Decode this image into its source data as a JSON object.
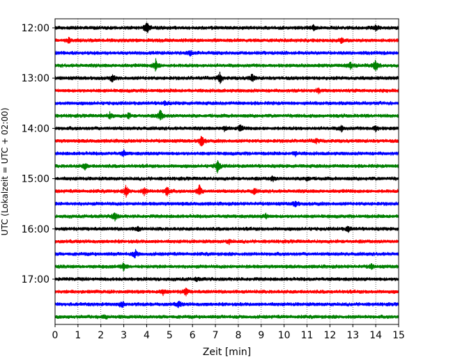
{
  "chart_data": {
    "type": "line",
    "title": "",
    "xlabel": "Zeit  [min]",
    "ylabel": "UTC (Lokalzeit = UTC + 02:00)",
    "xlim": [
      0,
      15
    ],
    "x_ticks": [
      0,
      1,
      2,
      3,
      4,
      5,
      6,
      7,
      8,
      9,
      10,
      11,
      12,
      13,
      14,
      15
    ],
    "x_tick_labels": [
      "0",
      "1",
      "2",
      "3",
      "4",
      "5",
      "6",
      "7",
      "8",
      "9",
      "10",
      "11",
      "12",
      "13",
      "14",
      "15"
    ],
    "y_tick_labels": [
      "12:00",
      "13:00",
      "14:00",
      "15:00",
      "16:00",
      "17:00"
    ],
    "y_axis_inverted": true,
    "grid": "vertical dotted at each minute",
    "trace_interval_minutes": 15,
    "trace_colors": [
      "#000000",
      "#ff0000",
      "#0000ff",
      "#008000"
    ],
    "traces": [
      {
        "start": "12:00",
        "color": "#000000",
        "events": [
          {
            "t": 4.0,
            "amp": 1.0
          },
          {
            "t": 11.3,
            "amp": 0.45
          },
          {
            "t": 14.0,
            "amp": 0.35
          }
        ]
      },
      {
        "start": "12:15",
        "color": "#ff0000",
        "events": [
          {
            "t": 0.6,
            "amp": 0.3
          },
          {
            "t": 12.5,
            "amp": 0.35
          }
        ]
      },
      {
        "start": "12:30",
        "color": "#0000ff",
        "events": [
          {
            "t": 5.9,
            "amp": 0.3
          }
        ]
      },
      {
        "start": "12:45",
        "color": "#008000",
        "events": [
          {
            "t": 4.4,
            "amp": 0.9
          },
          {
            "t": 12.9,
            "amp": 0.45
          },
          {
            "t": 14.0,
            "amp": 0.95
          }
        ]
      },
      {
        "start": "13:00",
        "color": "#000000",
        "events": [
          {
            "t": 2.5,
            "amp": 0.45
          },
          {
            "t": 7.2,
            "amp": 0.75
          },
          {
            "t": 8.6,
            "amp": 0.6
          }
        ]
      },
      {
        "start": "13:15",
        "color": "#ff0000",
        "events": [
          {
            "t": 11.5,
            "amp": 0.3
          }
        ]
      },
      {
        "start": "13:30",
        "color": "#0000ff",
        "events": [
          {
            "t": 4.8,
            "amp": 0.25
          }
        ]
      },
      {
        "start": "13:45",
        "color": "#008000",
        "events": [
          {
            "t": 2.4,
            "amp": 0.45
          },
          {
            "t": 3.2,
            "amp": 0.4
          },
          {
            "t": 4.6,
            "amp": 0.85
          }
        ]
      },
      {
        "start": "14:00",
        "color": "#000000",
        "events": [
          {
            "t": 7.4,
            "amp": 0.35
          },
          {
            "t": 8.1,
            "amp": 0.45
          },
          {
            "t": 12.5,
            "amp": 0.4
          },
          {
            "t": 14.0,
            "amp": 0.4
          }
        ]
      },
      {
        "start": "14:15",
        "color": "#ff0000",
        "events": [
          {
            "t": 6.4,
            "amp": 0.9
          },
          {
            "t": 11.4,
            "amp": 0.3
          }
        ]
      },
      {
        "start": "14:30",
        "color": "#0000ff",
        "events": [
          {
            "t": 3.0,
            "amp": 0.35
          },
          {
            "t": 10.5,
            "amp": 0.3
          }
        ]
      },
      {
        "start": "14:45",
        "color": "#008000",
        "events": [
          {
            "t": 1.3,
            "amp": 0.45
          },
          {
            "t": 7.1,
            "amp": 1.0
          }
        ]
      },
      {
        "start": "15:00",
        "color": "#000000",
        "events": [
          {
            "t": 9.5,
            "amp": 0.3
          },
          {
            "t": 11.0,
            "amp": 0.35
          }
        ]
      },
      {
        "start": "15:15",
        "color": "#ff0000",
        "events": [
          {
            "t": 3.1,
            "amp": 0.75
          },
          {
            "t": 3.9,
            "amp": 0.5
          },
          {
            "t": 4.9,
            "amp": 0.75
          },
          {
            "t": 6.3,
            "amp": 0.85
          },
          {
            "t": 8.7,
            "amp": 0.4
          }
        ]
      },
      {
        "start": "15:30",
        "color": "#0000ff",
        "events": [
          {
            "t": 10.5,
            "amp": 0.45
          }
        ]
      },
      {
        "start": "15:45",
        "color": "#008000",
        "events": [
          {
            "t": 2.6,
            "amp": 0.7
          },
          {
            "t": 9.2,
            "amp": 0.3
          }
        ]
      },
      {
        "start": "16:00",
        "color": "#000000",
        "events": [
          {
            "t": 3.6,
            "amp": 0.35
          },
          {
            "t": 12.8,
            "amp": 0.4
          }
        ]
      },
      {
        "start": "16:15",
        "color": "#ff0000",
        "events": [
          {
            "t": 7.6,
            "amp": 0.25
          }
        ]
      },
      {
        "start": "16:30",
        "color": "#0000ff",
        "events": [
          {
            "t": 3.5,
            "amp": 0.55
          }
        ]
      },
      {
        "start": "16:45",
        "color": "#008000",
        "events": [
          {
            "t": 3.0,
            "amp": 0.6
          },
          {
            "t": 13.8,
            "amp": 0.3
          }
        ]
      },
      {
        "start": "17:00",
        "color": "#000000",
        "events": [
          {
            "t": 6.2,
            "amp": 0.25
          }
        ]
      },
      {
        "start": "17:15",
        "color": "#ff0000",
        "events": [
          {
            "t": 4.7,
            "amp": 0.45
          },
          {
            "t": 5.7,
            "amp": 0.55
          }
        ]
      },
      {
        "start": "17:30",
        "color": "#0000ff",
        "events": [
          {
            "t": 2.9,
            "amp": 0.45
          },
          {
            "t": 5.4,
            "amp": 0.45
          }
        ]
      },
      {
        "start": "17:45",
        "color": "#008000",
        "events": [
          {
            "t": 2.2,
            "amp": 0.3
          }
        ]
      }
    ]
  }
}
